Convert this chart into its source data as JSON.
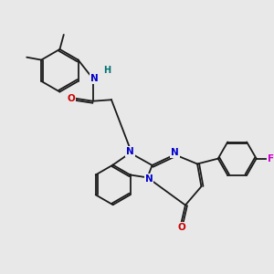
{
  "background_color": "#e8e8e8",
  "bond_color": "#1a1a1a",
  "atom_colors": {
    "N": "#0000cc",
    "O": "#cc0000",
    "F": "#cc00cc",
    "H": "#007070",
    "C": "#1a1a1a"
  },
  "lw": 1.3,
  "r_hex": 0.72,
  "r_fp": 0.68
}
